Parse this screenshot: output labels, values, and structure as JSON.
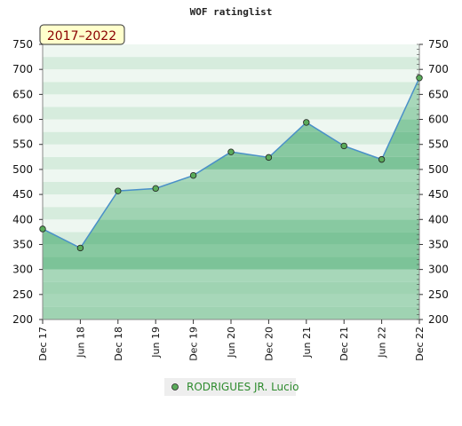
{
  "chart_data": {
    "type": "area",
    "title": "WOF ratinglist",
    "period_label": "2017–2022",
    "categories": [
      "Dec 17",
      "Jun 18",
      "Dec 18",
      "Jun 19",
      "Dec 19",
      "Jun 20",
      "Dec 20",
      "Jun 21",
      "Dec 21",
      "Jun 22",
      "Dec 22"
    ],
    "series": [
      {
        "name": "RODRIGUES JR. Lucio",
        "values": [
          381,
          343,
          457,
          462,
          488,
          535,
          524,
          594,
          547,
          520,
          683
        ]
      }
    ],
    "ylim": [
      200,
      750
    ],
    "yticks": [
      200,
      250,
      300,
      350,
      400,
      450,
      500,
      550,
      600,
      650,
      700,
      750
    ],
    "legend_position": "bottom-center",
    "colors": {
      "line": "#4a90c8",
      "marker": "#5aab5a",
      "fill_dark": "#7cc398",
      "fill_light": "#9fd3b2",
      "band_dark": "#d6ecdd",
      "band_light": "#eef7f1"
    }
  }
}
